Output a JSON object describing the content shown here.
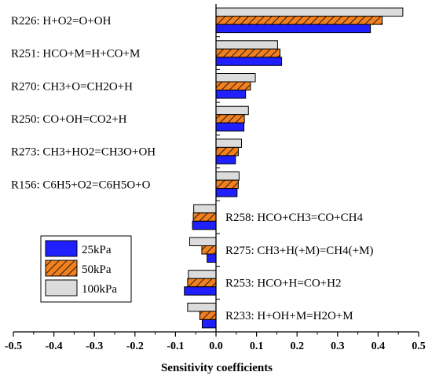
{
  "chart_data": {
    "type": "bar",
    "orientation": "horizontal",
    "xlabel": "Sensitivity coefficients",
    "ylabel": "",
    "title": "",
    "xlim": [
      -0.5,
      0.5
    ],
    "xticks": [
      "-0.5",
      "-0.4",
      "-0.3",
      "-0.2",
      "-0.1",
      "0.0",
      "0.1",
      "0.2",
      "0.3",
      "0.4",
      "0.5"
    ],
    "categories": [
      "R226: H+O2=O+OH",
      "R251: HCO+M=H+CO+M",
      "R270: CH3+O=CH2O+H",
      "R250: CO+OH=CO2+H",
      "R273: CH3+HO2=CH3O+OH",
      "R156: C6H5+O2=C6H5O+O",
      "R258: HCO+CH3=CO+CH4",
      "R275: CH3+H(+M)=CH4(+M)",
      "R253: HCO+H=CO+H2",
      "R233: H+OH+M=H2O+M"
    ],
    "series": [
      {
        "name": "25kPa",
        "color": "#1f1fff",
        "pattern": "solid",
        "values": [
          0.381,
          0.162,
          0.073,
          0.069,
          0.048,
          0.052,
          -0.058,
          -0.022,
          -0.078,
          -0.034
        ]
      },
      {
        "name": "50kPa",
        "color": "#f08020",
        "pattern": "hatched",
        "values": [
          0.41,
          0.158,
          0.085,
          0.07,
          0.055,
          0.055,
          -0.056,
          -0.035,
          -0.07,
          -0.04
        ]
      },
      {
        "name": "100kPa",
        "color": "#dcdcdc",
        "pattern": "solid",
        "values": [
          0.461,
          0.152,
          0.097,
          0.08,
          0.063,
          0.057,
          -0.055,
          -0.065,
          -0.068,
          -0.07
        ]
      }
    ],
    "legend_position": "lower-left",
    "grid": false
  }
}
